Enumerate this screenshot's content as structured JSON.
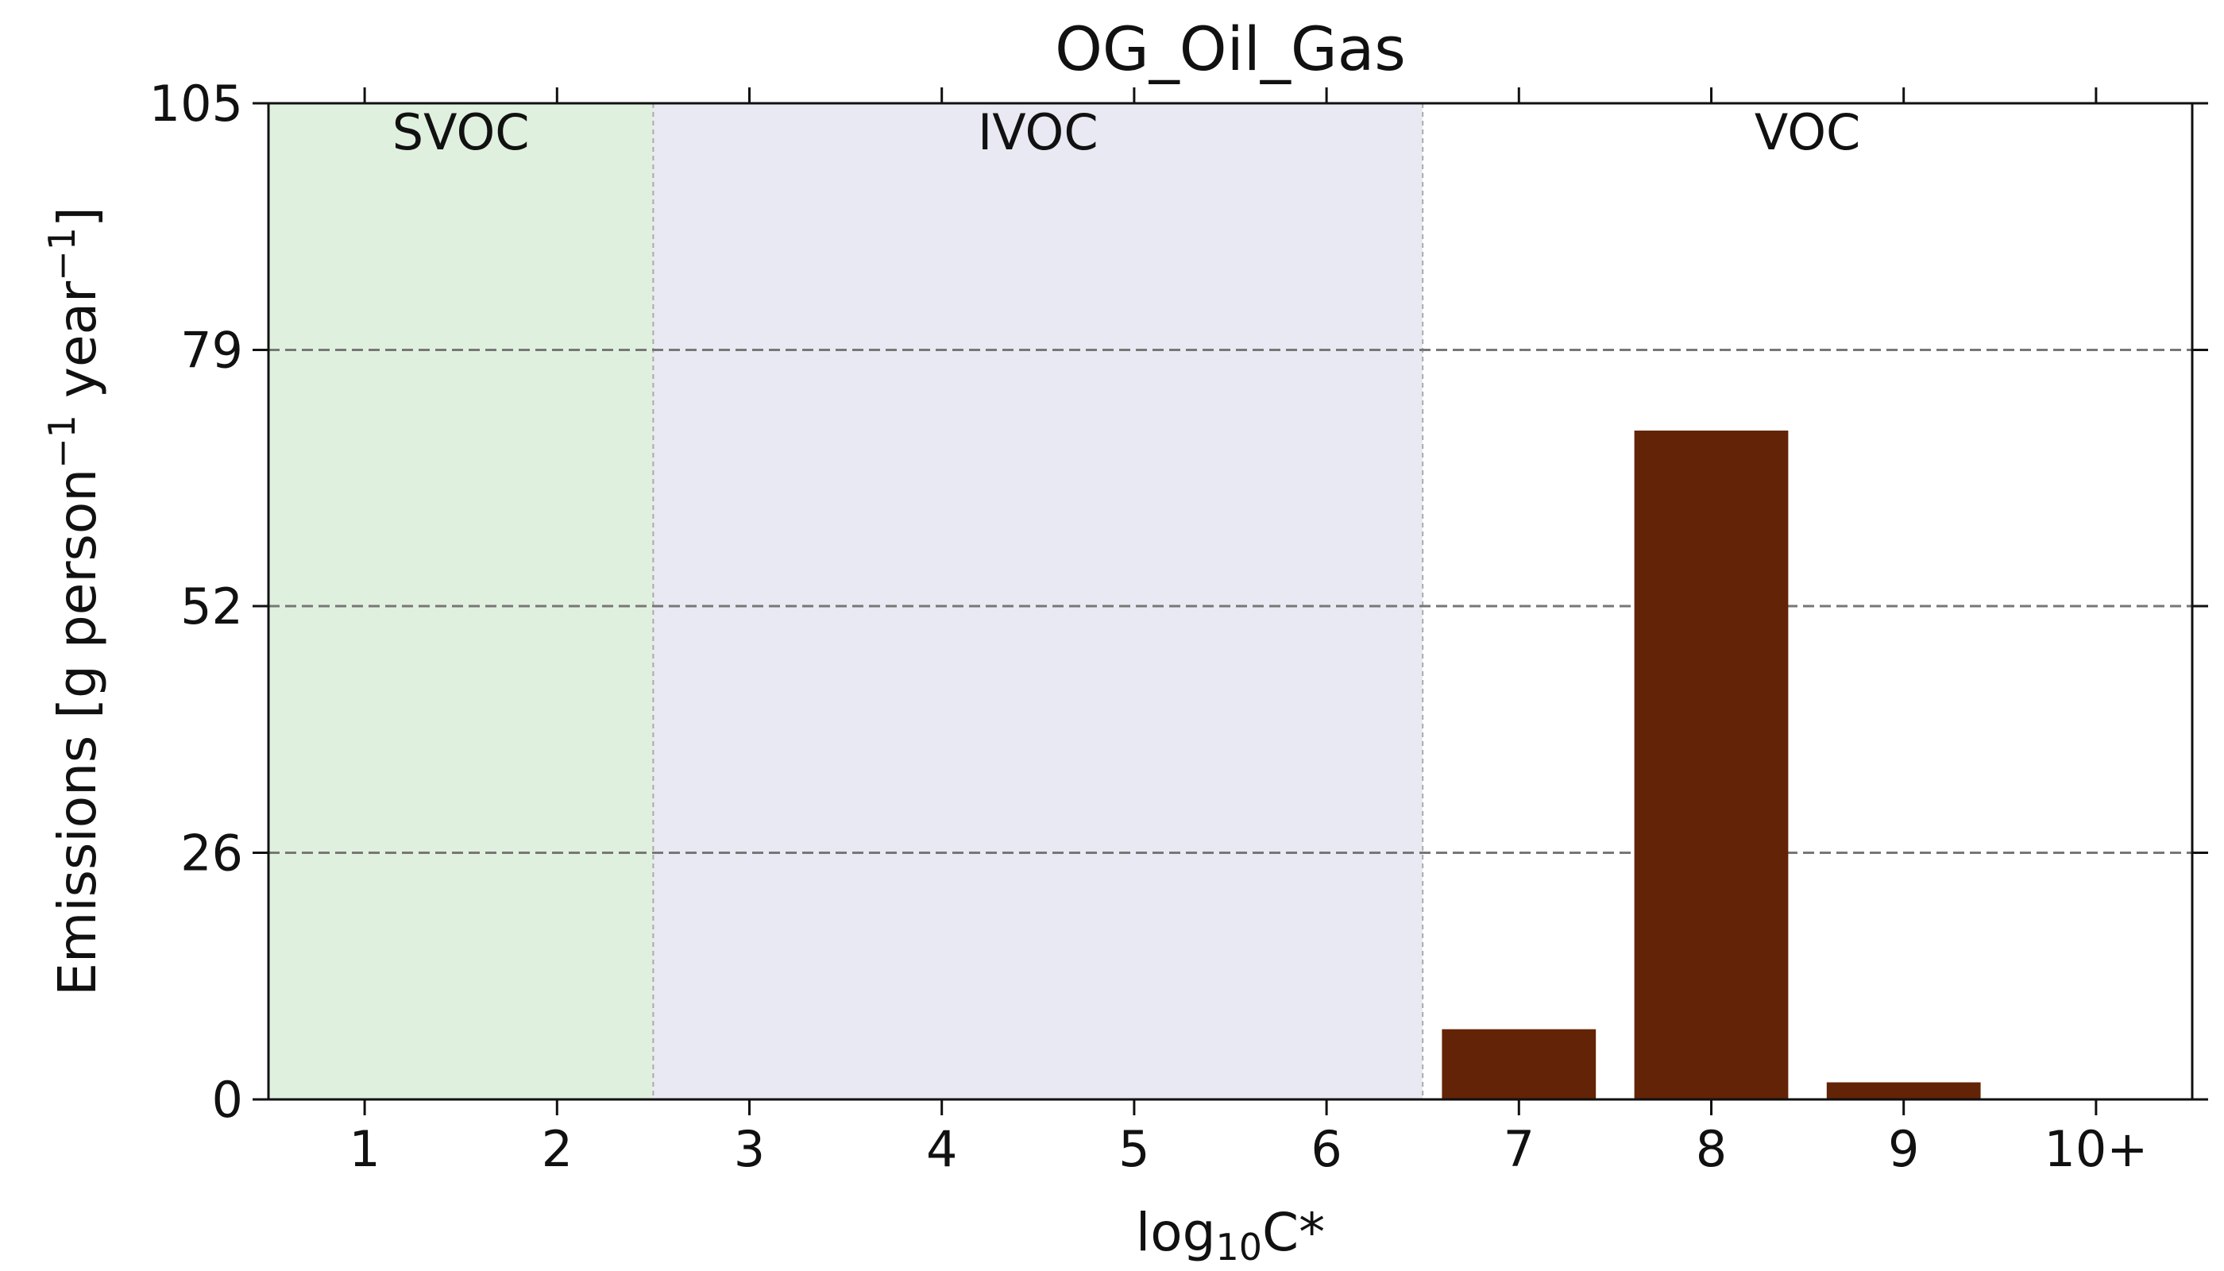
{
  "chart_data": {
    "type": "bar",
    "title": "OG_Oil_Gas",
    "xlabel": "log10C*",
    "xlabel_base": "log",
    "xlabel_sub": "10",
    "xlabel_tail": "C*",
    "ylabel": "Emissions [g person⁻¹ year⁻¹]",
    "ylabel_parts": {
      "a": "Emissions [g person",
      "sup1": "−1",
      "b": " year",
      "sup2": "−1",
      "c": "]"
    },
    "categories": [
      "1",
      "2",
      "3",
      "4",
      "5",
      "6",
      "7",
      "8",
      "9",
      "10+"
    ],
    "values": [
      0,
      0,
      0,
      0,
      0,
      0,
      7.4,
      70.5,
      1.8,
      0
    ],
    "ylim": [
      0,
      105
    ],
    "yticks": [
      0,
      26,
      52,
      79,
      105
    ],
    "grid": "horizontal dashed",
    "bar_color": "#632306",
    "regions": [
      {
        "label": "SVOC",
        "from": 0.5,
        "to": 2.5,
        "color": "#e0f0de"
      },
      {
        "label": "IVOC",
        "from": 2.5,
        "to": 6.5,
        "color": "#e9e9f3"
      },
      {
        "label": "VOC",
        "from": 6.5,
        "to": 10.5,
        "color": "#ffffff"
      }
    ]
  }
}
